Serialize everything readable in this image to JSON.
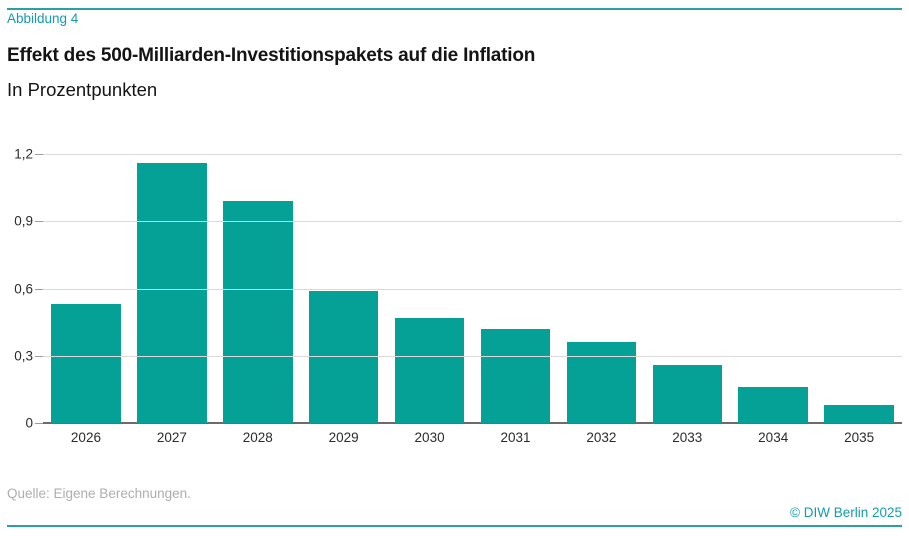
{
  "header": {
    "figure_label": "Abbildung 4",
    "title": "Effekt des 500-Milliarden-Investitionspakets auf die Inflation",
    "subtitle": "In Prozentpunkten"
  },
  "chart_data": {
    "type": "bar",
    "title": "Effekt des 500-Milliarden-Investitionspakets auf die Inflation",
    "subtitle": "In Prozentpunkten",
    "categories": [
      "2026",
      "2027",
      "2028",
      "2029",
      "2030",
      "2031",
      "2032",
      "2033",
      "2034",
      "2035"
    ],
    "values": [
      0.53,
      1.16,
      0.99,
      0.59,
      0.47,
      0.42,
      0.36,
      0.26,
      0.16,
      0.08
    ],
    "xlabel": "",
    "ylabel": "",
    "ylim": [
      0,
      1.2
    ],
    "ytick_values": [
      0,
      0.3,
      0.6,
      0.9,
      1.2
    ],
    "ytick_labels": [
      "0",
      "0,3",
      "0,6",
      "0,9",
      "1,2"
    ],
    "grid": true,
    "legend_position": "none",
    "bar_color": "#05a096"
  },
  "footer": {
    "source": "Quelle: Eigene Berechnungen.",
    "copyright": "© DIW Berlin 2025"
  },
  "colors": {
    "accent_teal": "#05a096",
    "rule_teal": "#2aa0a0",
    "label_teal": "#149cab",
    "gridline_gray": "#d9d9d9",
    "axis_gray": "#6b6b6b",
    "source_gray": "#aeaeae"
  }
}
